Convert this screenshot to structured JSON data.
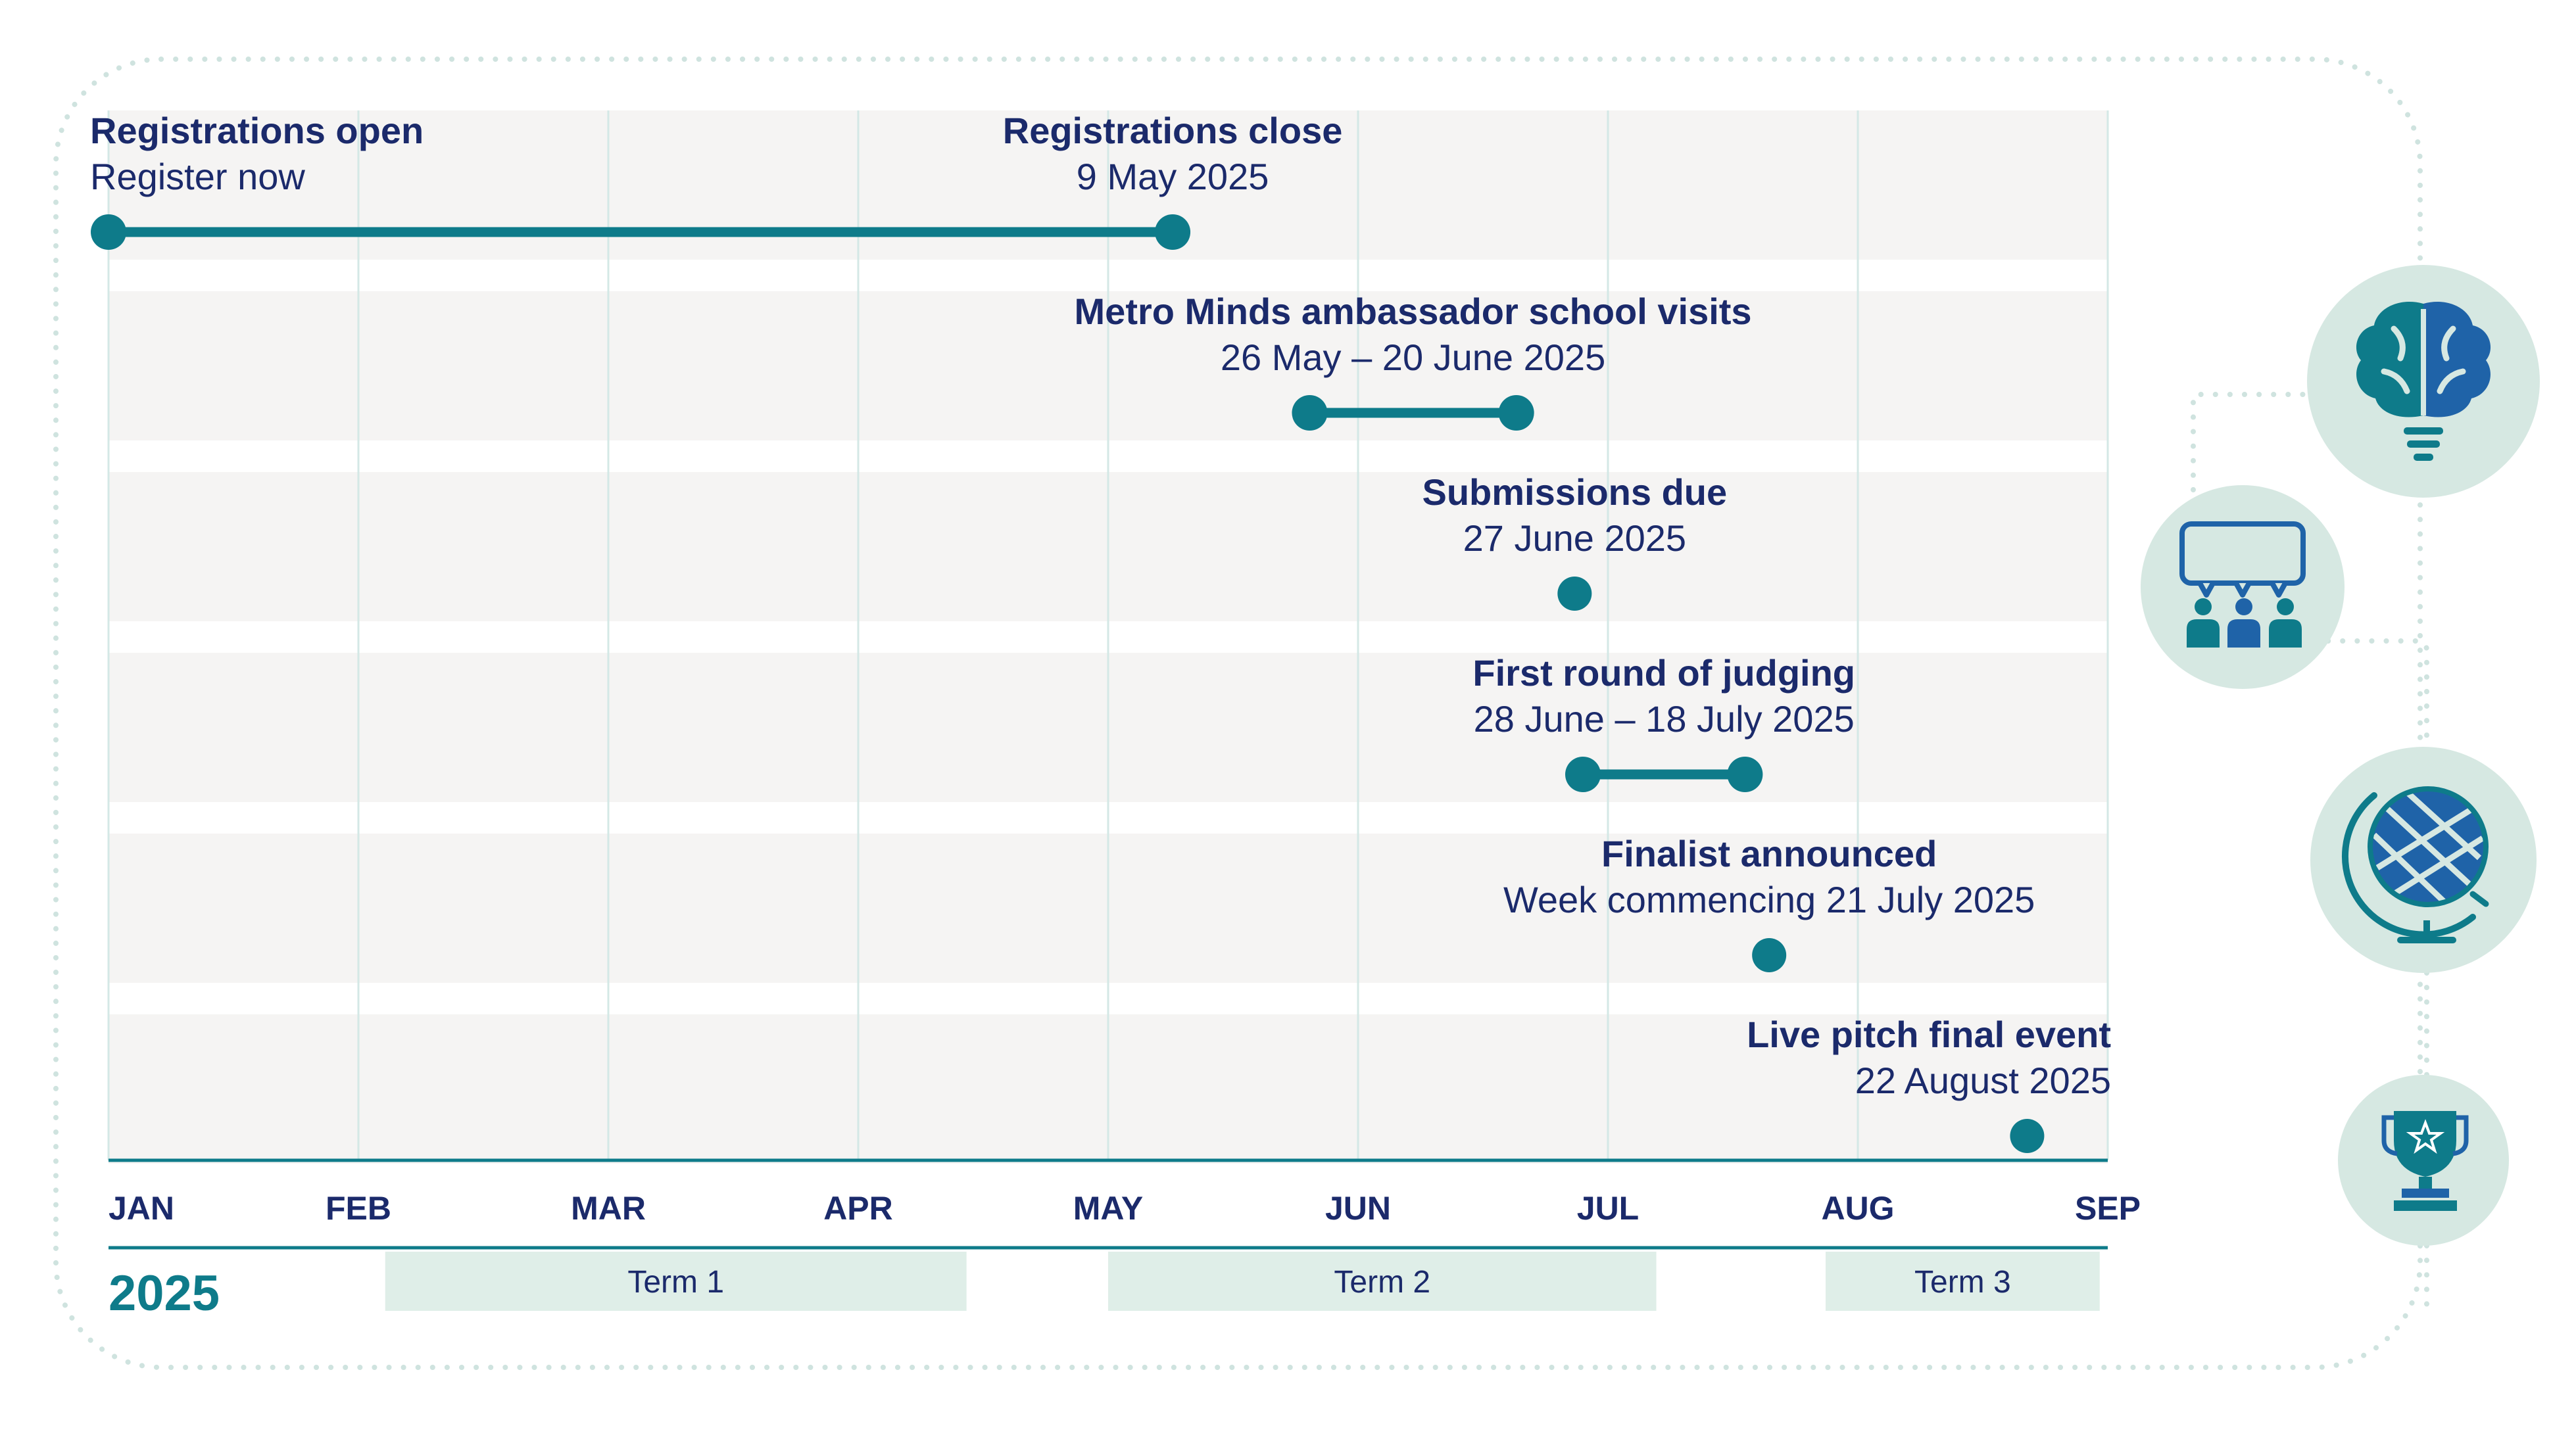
{
  "timeline": {
    "year": "2025",
    "months": [
      "JAN",
      "FEB",
      "MAR",
      "APR",
      "MAY",
      "JUN",
      "JUL",
      "AUG",
      "SEP"
    ],
    "rows": [
      {
        "kind": "range",
        "labels": [
          {
            "title": "Registrations open",
            "subtitle": "Register now",
            "align": "start"
          },
          {
            "title": "Registrations close",
            "subtitle": "9 May 2025",
            "align": "end"
          }
        ],
        "start": "2025-01-01",
        "end": "2025-05-09"
      },
      {
        "kind": "range",
        "labels": [
          {
            "title": "Metro Minds ambassador school visits",
            "subtitle": "26 May – 20 June 2025",
            "align": "center"
          }
        ],
        "start": "2025-05-26",
        "end": "2025-06-20"
      },
      {
        "kind": "point",
        "labels": [
          {
            "title": "Submissions due",
            "subtitle": "27 June 2025",
            "align": "point"
          }
        ],
        "date": "2025-06-27"
      },
      {
        "kind": "range",
        "labels": [
          {
            "title": "First round of judging",
            "subtitle": "28 June – 18 July 2025",
            "align": "center"
          }
        ],
        "start": "2025-06-28",
        "end": "2025-07-18"
      },
      {
        "kind": "point",
        "labels": [
          {
            "title": "Finalist announced",
            "subtitle": "Week commencing 21 July 2025",
            "align": "point"
          }
        ],
        "date": "2025-07-21"
      },
      {
        "kind": "point",
        "labels": [
          {
            "title": "Live pitch final event",
            "subtitle": "22 August 2025",
            "align": "point"
          }
        ],
        "date": "2025-08-22"
      }
    ],
    "terms": [
      {
        "label": "Term 1",
        "start": "2025-02-04",
        "end": "2025-04-14"
      },
      {
        "label": "Term 2",
        "start": "2025-05-01",
        "end": "2025-07-07"
      },
      {
        "label": "Term 3",
        "start": "2025-07-28",
        "end": "2025-08-31"
      }
    ]
  },
  "icons": [
    {
      "name": "brain-lightbulb-icon"
    },
    {
      "name": "presentation-audience-icon"
    },
    {
      "name": "globe-icon"
    },
    {
      "name": "trophy-icon"
    }
  ],
  "colors": {
    "teal": "#0e7b8a",
    "navy": "#1b2a6b",
    "row_bg": "#f5f4f3",
    "term_bg": "#dfeee8",
    "icon_bg": "#d6e8e2",
    "dotted": "#cfe3df",
    "grid": "#d4e8e6"
  }
}
